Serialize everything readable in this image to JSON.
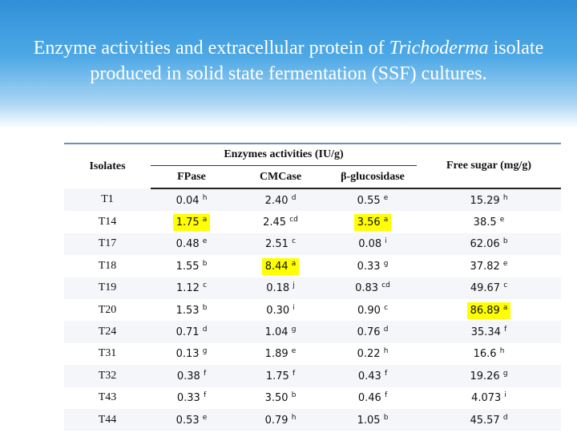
{
  "header": {
    "title_parts": [
      "Enzyme activities and extracellular protein of ",
      "Trichoderma",
      " isolate produced in solid state fermentation (SSF) cultures."
    ]
  },
  "table": {
    "headers": {
      "isolates": "Isolates",
      "group": "Enzymes activities (IU/g)",
      "columns": [
        "FPase",
        "CMCase",
        "β-glucosidase"
      ],
      "free_sugar": "Free sugar (mg/g)"
    },
    "rows": [
      {
        "isolate": "T1",
        "cells": [
          {
            "value": "0.04",
            "sup": "h"
          },
          {
            "value": "2.40",
            "sup": "d"
          },
          {
            "value": "0.55",
            "sup": "e"
          },
          {
            "value": "15.29",
            "sup": "h"
          }
        ]
      },
      {
        "isolate": "T14",
        "cells": [
          {
            "value": "1.75",
            "sup": "a",
            "highlight": true
          },
          {
            "value": "2.45",
            "sup": "cd"
          },
          {
            "value": "3.56",
            "sup": "a",
            "highlight": true
          },
          {
            "value": "38.5",
            "sup": "e"
          }
        ]
      },
      {
        "isolate": "T17",
        "cells": [
          {
            "value": "0.48",
            "sup": "e"
          },
          {
            "value": "2.51",
            "sup": "c"
          },
          {
            "value": "0.08",
            "sup": "i"
          },
          {
            "value": "62.06",
            "sup": "b"
          }
        ]
      },
      {
        "isolate": "T18",
        "cells": [
          {
            "value": "1.55",
            "sup": "b"
          },
          {
            "value": "8.44",
            "sup": "a",
            "highlight": true
          },
          {
            "value": "0.33",
            "sup": "g"
          },
          {
            "value": "37.82",
            "sup": "e"
          }
        ]
      },
      {
        "isolate": "T19",
        "cells": [
          {
            "value": "1.12",
            "sup": "c"
          },
          {
            "value": "0.18",
            "sup": "j"
          },
          {
            "value": "0.83",
            "sup": "cd"
          },
          {
            "value": "49.67",
            "sup": "c"
          }
        ]
      },
      {
        "isolate": "T20",
        "cells": [
          {
            "value": "1.53",
            "sup": "b"
          },
          {
            "value": "0.30",
            "sup": "i"
          },
          {
            "value": "0.90",
            "sup": "c"
          },
          {
            "value": "86.89",
            "sup": "a",
            "highlight": true
          }
        ]
      },
      {
        "isolate": "T24",
        "cells": [
          {
            "value": "0.71",
            "sup": "d"
          },
          {
            "value": "1.04",
            "sup": "g"
          },
          {
            "value": "0.76",
            "sup": "d"
          },
          {
            "value": "35.34",
            "sup": "f"
          }
        ]
      },
      {
        "isolate": "T31",
        "cells": [
          {
            "value": "0.13",
            "sup": "g"
          },
          {
            "value": "1.89",
            "sup": "e"
          },
          {
            "value": "0.22",
            "sup": "h"
          },
          {
            "value": "16.6",
            "sup": "h"
          }
        ]
      },
      {
        "isolate": "T32",
        "cells": [
          {
            "value": "0.38",
            "sup": "f"
          },
          {
            "value": "1.75",
            "sup": "f"
          },
          {
            "value": "0.43",
            "sup": "f"
          },
          {
            "value": "19.26",
            "sup": "g"
          }
        ]
      },
      {
        "isolate": "T43",
        "cells": [
          {
            "value": "0.33",
            "sup": "f"
          },
          {
            "value": "3.50",
            "sup": "b"
          },
          {
            "value": "0.46",
            "sup": "f"
          },
          {
            "value": "4.073",
            "sup": "i"
          }
        ]
      },
      {
        "isolate": "T44",
        "cells": [
          {
            "value": "0.53",
            "sup": "e"
          },
          {
            "value": "0.79",
            "sup": "h"
          },
          {
            "value": "1.05",
            "sup": "b"
          },
          {
            "value": "45.57",
            "sup": "d"
          }
        ]
      }
    ]
  }
}
